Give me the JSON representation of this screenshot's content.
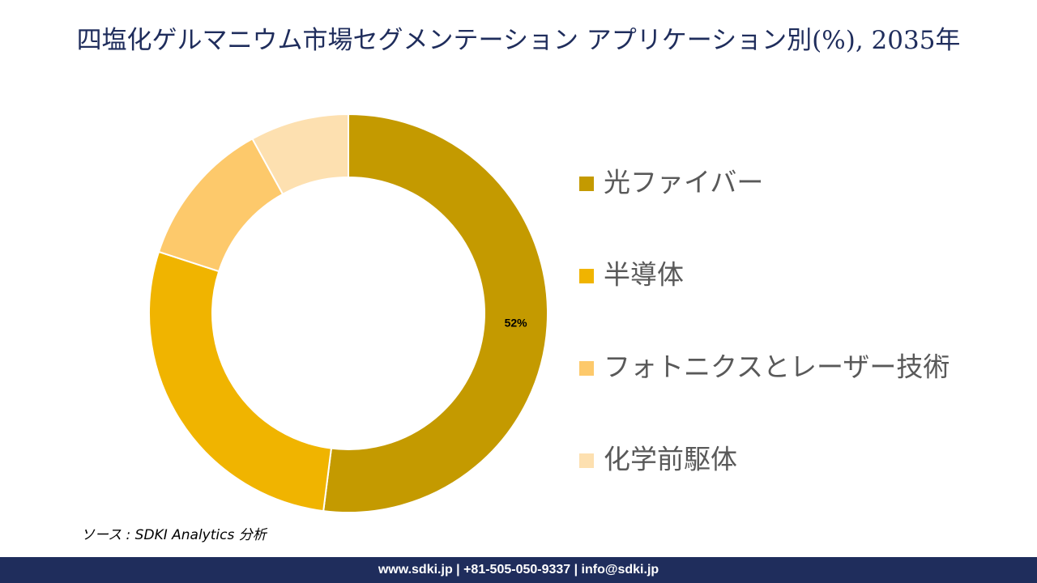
{
  "chart_data": {
    "type": "donut",
    "title": "四塩化ゲルマニウム市場セグメンテーション アプリケーション別(%), 2035年",
    "categories": [
      "光ファイバー",
      "半導体",
      "フォトニクスとレーザー技術",
      "化学前駆体"
    ],
    "values": [
      52,
      28,
      12,
      8
    ],
    "value_labels": [
      "52%",
      null,
      null,
      null
    ],
    "colors": [
      "#c49a00",
      "#f0b400",
      "#fdc96b",
      "#fde0b0"
    ],
    "legend": "right",
    "source": "ソース : SDKI Analytics 分析"
  },
  "footer": {
    "text": "www.sdki.jp | +81-505-050-9337 | info@sdki.jp"
  }
}
